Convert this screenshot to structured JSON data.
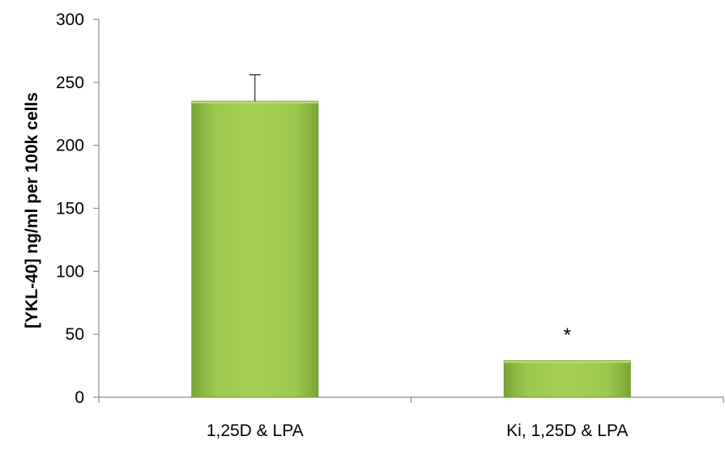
{
  "chart_data": {
    "type": "bar",
    "title": "",
    "xlabel": "",
    "ylabel": "[YKL-40] ng/ml per 100k cells",
    "ylim": [
      0,
      300
    ],
    "yticks": [
      0,
      50,
      100,
      150,
      200,
      250,
      300
    ],
    "categories": [
      "1,25D & LPA",
      "Ki, 1,25D & LPA"
    ],
    "values": [
      235,
      29
    ],
    "error_plus": [
      21,
      0
    ],
    "annotations": [
      "",
      "*"
    ],
    "grid": false,
    "legend": "none",
    "bar_color": "#92c043"
  }
}
